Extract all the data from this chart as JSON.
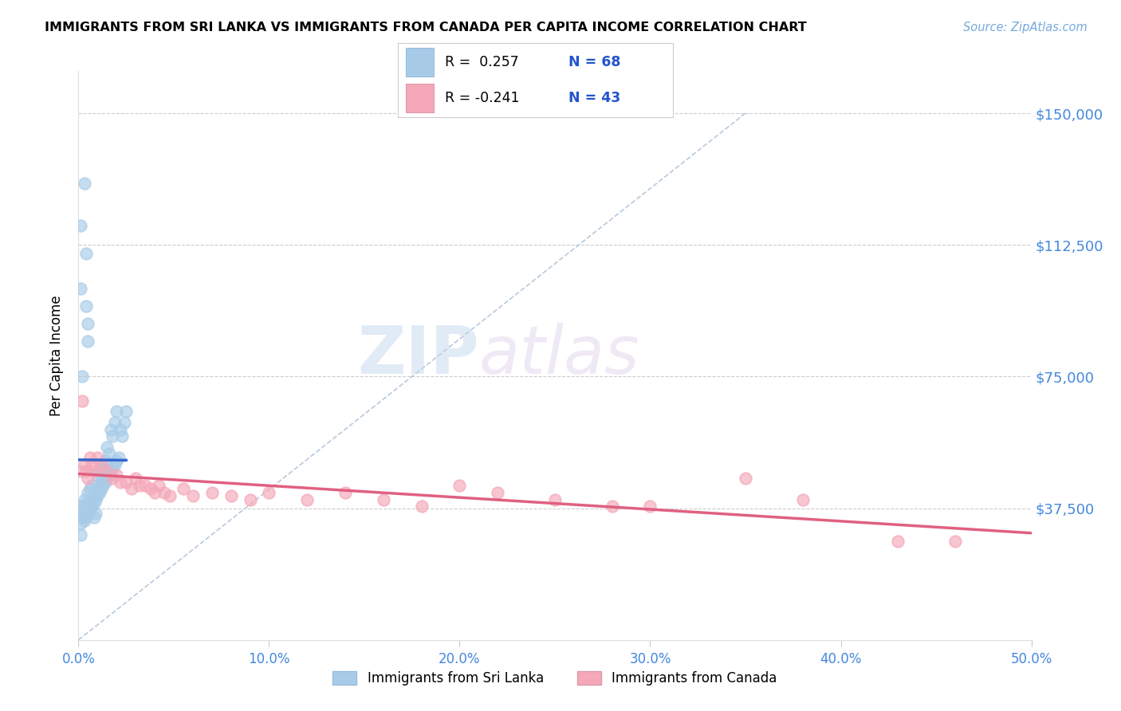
{
  "title": "IMMIGRANTS FROM SRI LANKA VS IMMIGRANTS FROM CANADA PER CAPITA INCOME CORRELATION CHART",
  "source": "Source: ZipAtlas.com",
  "ylabel": "Per Capita Income",
  "yticks": [
    0,
    37500,
    75000,
    112500,
    150000
  ],
  "ytick_labels": [
    "",
    "$37,500",
    "$75,000",
    "$112,500",
    "$150,000"
  ],
  "xlim": [
    0.0,
    0.5
  ],
  "ylim": [
    0,
    162000
  ],
  "r1": " 0.257",
  "n1": "68",
  "r2": "-0.241",
  "n2": "43",
  "sri_lanka_color": "#a8cce8",
  "canada_color": "#f4a8b8",
  "sri_lanka_line_color": "#3366cc",
  "canada_line_color": "#e06080",
  "dashed_line_color": "#b0c4d8",
  "background_color": "#ffffff",
  "watermark_zip": "ZIP",
  "watermark_atlas": "atlas",
  "sri_lanka_x": [
    0.001,
    0.001,
    0.001,
    0.002,
    0.002,
    0.002,
    0.003,
    0.003,
    0.003,
    0.003,
    0.004,
    0.004,
    0.004,
    0.005,
    0.005,
    0.005,
    0.006,
    0.006,
    0.006,
    0.007,
    0.007,
    0.007,
    0.008,
    0.008,
    0.008,
    0.009,
    0.009,
    0.009,
    0.01,
    0.01,
    0.01,
    0.011,
    0.011,
    0.011,
    0.012,
    0.012,
    0.012,
    0.013,
    0.013,
    0.013,
    0.014,
    0.014,
    0.014,
    0.015,
    0.015,
    0.016,
    0.016,
    0.017,
    0.017,
    0.018,
    0.018,
    0.019,
    0.019,
    0.02,
    0.02,
    0.021,
    0.022,
    0.023,
    0.024,
    0.025,
    0.003,
    0.004,
    0.004,
    0.005,
    0.005,
    0.001,
    0.001,
    0.002
  ],
  "sri_lanka_y": [
    35000,
    33000,
    30000,
    35000,
    36000,
    38000,
    34000,
    36000,
    38000,
    40000,
    35000,
    37000,
    39000,
    36000,
    38000,
    42000,
    37000,
    39000,
    43000,
    38000,
    40000,
    44000,
    39000,
    41000,
    35000,
    40000,
    42000,
    36000,
    41000,
    43000,
    47000,
    42000,
    44000,
    48000,
    43000,
    45000,
    49000,
    44000,
    46000,
    50000,
    45000,
    47000,
    51000,
    46000,
    55000,
    47000,
    53000,
    48000,
    60000,
    49000,
    58000,
    50000,
    62000,
    51000,
    65000,
    52000,
    60000,
    58000,
    62000,
    65000,
    130000,
    95000,
    110000,
    85000,
    90000,
    118000,
    100000,
    75000
  ],
  "canada_x": [
    0.001,
    0.002,
    0.003,
    0.004,
    0.005,
    0.006,
    0.007,
    0.008,
    0.01,
    0.012,
    0.015,
    0.018,
    0.02,
    0.022,
    0.025,
    0.028,
    0.03,
    0.032,
    0.035,
    0.038,
    0.04,
    0.042,
    0.045,
    0.048,
    0.055,
    0.06,
    0.07,
    0.08,
    0.09,
    0.1,
    0.12,
    0.14,
    0.16,
    0.18,
    0.2,
    0.22,
    0.25,
    0.28,
    0.3,
    0.35,
    0.38,
    0.43,
    0.46
  ],
  "canada_y": [
    48000,
    68000,
    50000,
    48000,
    46000,
    52000,
    50000,
    48000,
    52000,
    50000,
    48000,
    46000,
    47000,
    45000,
    45000,
    43000,
    46000,
    44000,
    44000,
    43000,
    42000,
    44000,
    42000,
    41000,
    43000,
    41000,
    42000,
    41000,
    40000,
    42000,
    40000,
    42000,
    40000,
    38000,
    44000,
    42000,
    40000,
    38000,
    38000,
    46000,
    40000,
    28000,
    28000
  ]
}
